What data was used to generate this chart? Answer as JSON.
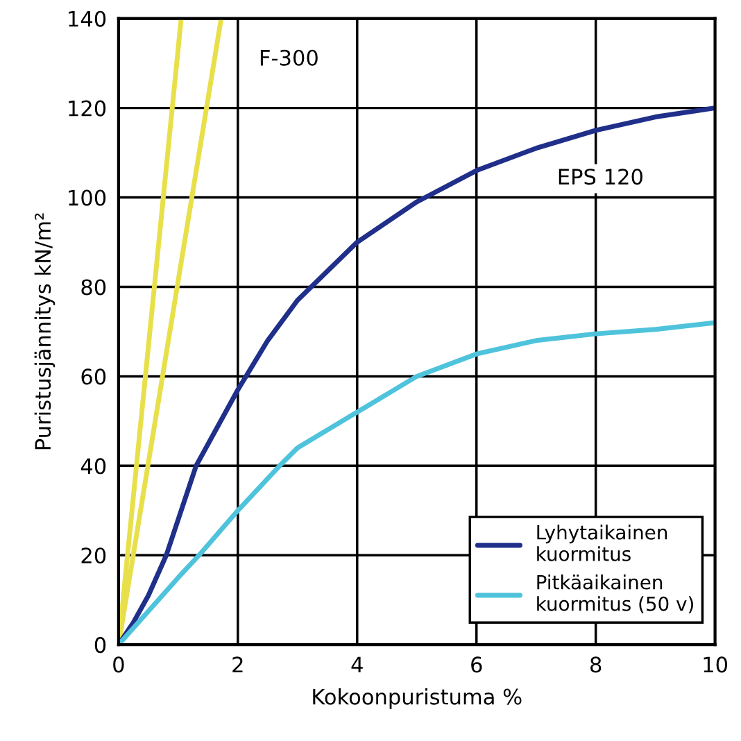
{
  "chart_data": {
    "type": "line",
    "xlabel": "Kokoonpuristuma %",
    "ylabel": "Puristusjännitys kN/m²",
    "xlim": [
      0,
      10
    ],
    "ylim": [
      0,
      140
    ],
    "xticks": [
      0,
      2,
      4,
      6,
      8,
      10
    ],
    "yticks": [
      0,
      20,
      40,
      60,
      80,
      100,
      120,
      140
    ],
    "grid": true,
    "legend": "bottom right",
    "marker": "none",
    "line_style": "solid",
    "series": [
      {
        "color": "#e8e04a",
        "x": [
          0,
          1.05
        ],
        "values": [
          0,
          140
        ]
      },
      {
        "color": "#e8e04a",
        "x": [
          0,
          1.72
        ],
        "values": [
          0,
          140
        ]
      },
      {
        "name": "Lyhytaikainen\nkuormitus",
        "color": "#1f2f8a",
        "x": [
          0,
          0.25,
          0.5,
          0.8,
          1.3,
          2,
          2.5,
          3,
          4,
          5,
          6,
          7,
          8,
          9,
          10
        ],
        "values": [
          0,
          5,
          11,
          20,
          40,
          57,
          68,
          77,
          90,
          99,
          106,
          111,
          115,
          118,
          120
        ]
      },
      {
        "name": "Pitkäaikainen\nkuormitus (50 v)",
        "color": "#4fc3dc",
        "x": [
          0,
          1,
          1.35,
          2,
          2.7,
          3,
          4,
          5,
          6,
          7,
          8,
          9,
          10
        ],
        "values": [
          0,
          15,
          20,
          30,
          40,
          44,
          52,
          60,
          65,
          68,
          69.5,
          70.5,
          72
        ]
      }
    ],
    "annotations": [
      "F-300",
      "EPS 120"
    ]
  }
}
